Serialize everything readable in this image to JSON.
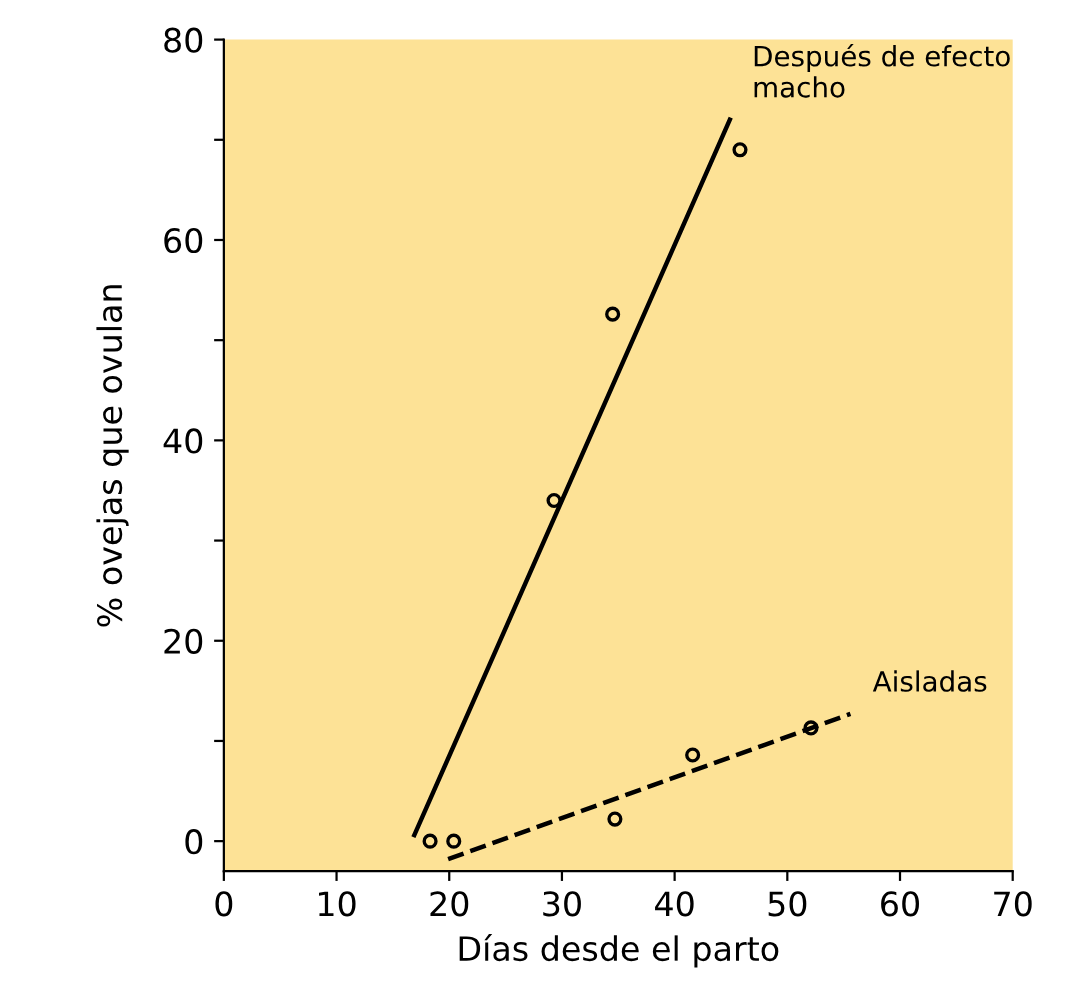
{
  "chart_data": {
    "type": "line",
    "xlabel": "Días desde el parto",
    "ylabel": "% ovejas que ovulan",
    "xlim": [
      0,
      70
    ],
    "xticks": [
      0,
      10,
      20,
      30,
      40,
      50,
      60,
      70
    ],
    "ylim": [
      -3,
      80
    ],
    "yticks": [
      0,
      {
        "value": 10,
        "label": null
      },
      20,
      {
        "value": 30,
        "label": null
      },
      40,
      {
        "value": 50,
        "label": null
      },
      60,
      {
        "value": 70,
        "label": null
      },
      80
    ],
    "grid": false,
    "legend": false,
    "series": [
      {
        "name": "Después de efecto macho",
        "color": "#000000",
        "line_style": "solid",
        "marker": "none",
        "x": [
          16.9,
          44.9
        ],
        "values": [
          0.6,
          72
        ]
      },
      {
        "type": "scatter",
        "color": "#000000",
        "marker": "circle",
        "x": [
          18.3,
          29.3,
          34.5,
          45.8
        ],
        "values": [
          0,
          34,
          52.6,
          69
        ]
      },
      {
        "name": "Aisladas",
        "color": "#000000",
        "line_style": "dashed",
        "marker": "none",
        "x": [
          19.9,
          55.6
        ],
        "values": [
          -1.8,
          12.7
        ]
      },
      {
        "type": "scatter",
        "color": "#000000",
        "marker": "circle",
        "x": [
          20.4,
          34.7,
          41.6,
          52.1
        ],
        "values": [
          0,
          2.2,
          8.6,
          11.3
        ]
      }
    ]
  }
}
